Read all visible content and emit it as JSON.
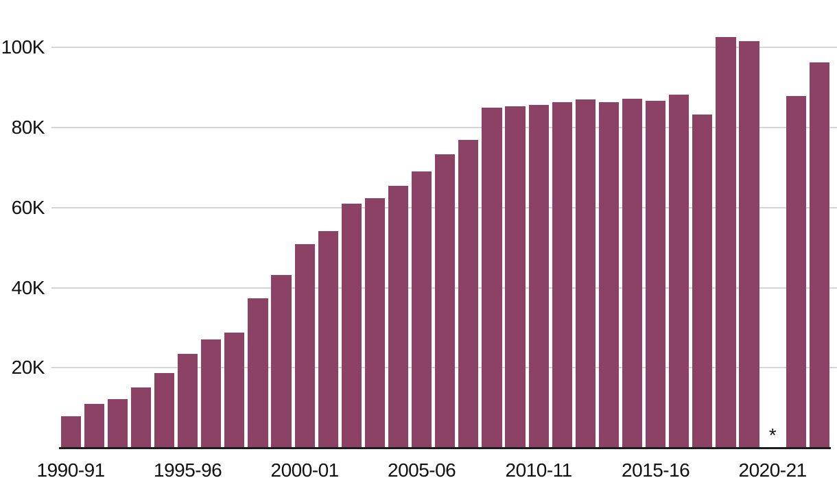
{
  "chart_data": {
    "type": "bar",
    "title": "",
    "xlabel": "",
    "ylabel": "",
    "categories": [
      "1990-91",
      "1991-92",
      "1992-93",
      "1993-94",
      "1994-95",
      "1995-96",
      "1996-97",
      "1997-98",
      "1998-99",
      "1999-00",
      "2000-01",
      "2001-02",
      "2002-03",
      "2003-04",
      "2004-05",
      "2005-06",
      "2006-07",
      "2007-08",
      "2008-09",
      "2009-10",
      "2010-11",
      "2011-12",
      "2012-13",
      "2013-14",
      "2014-15",
      "2015-16",
      "2016-17",
      "2017-18",
      "2018-19",
      "2019-20",
      "2020-21",
      "2021-22",
      "2022-23"
    ],
    "values": [
      7900,
      11000,
      12100,
      15100,
      18700,
      23500,
      27000,
      28700,
      37400,
      43100,
      50800,
      54100,
      60900,
      62300,
      65400,
      69100,
      73300,
      77000,
      84900,
      85300,
      85600,
      86300,
      87000,
      86300,
      87200,
      86700,
      88200,
      83200,
      102600,
      101500,
      null,
      87800,
      96200
    ],
    "ylim": [
      0,
      105000
    ],
    "y_ticks": [
      {
        "value": 20000,
        "label": "20K"
      },
      {
        "value": 40000,
        "label": "40K"
      },
      {
        "value": 60000,
        "label": "60K"
      },
      {
        "value": 80000,
        "label": "80K"
      },
      {
        "value": 100000,
        "label": "100K"
      }
    ],
    "x_tick_slots": [
      0,
      5,
      10,
      15,
      20,
      25,
      30
    ],
    "x_tick_labels": [
      "1990-91",
      "1995-96",
      "2000-01",
      "2005-06",
      "2010-11",
      "2015-16",
      "2020-21"
    ],
    "missing_marker": "*",
    "missing_category": "2020-21",
    "grid": "horizontal-only",
    "legend": "none"
  },
  "colors": {
    "bar": "#8c4265",
    "gridline": "#d5d5d5",
    "axis_line": "#1c1c1c",
    "text": "#111111",
    "background": "#ffffff"
  }
}
